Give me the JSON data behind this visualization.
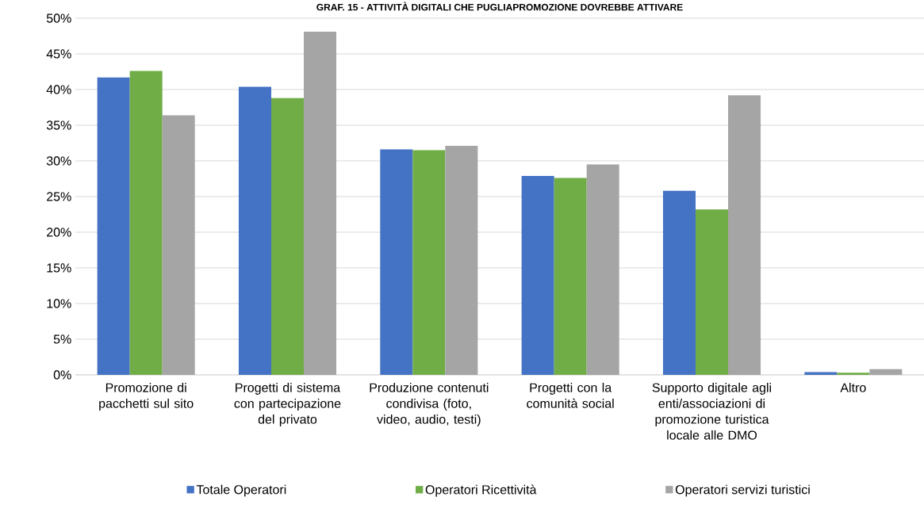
{
  "chart_data": {
    "type": "bar",
    "title": "GRAF. 15 - ATTIVITÀ DIGITALI CHE PUGLIAPROMOZIONE DOVREBBE ATTIVARE",
    "categories": [
      "Promozione di pacchetti sul sito",
      "Progetti di sistema con partecipazione del privato",
      "Produzione contenuti condivisa (foto, video, audio, testi)",
      "Progetti con la comunità social",
      "Supporto digitale agli enti/associazioni di promozione turistica locale alle DMO",
      "Altro"
    ],
    "series": [
      {
        "name": "Totale Operatori",
        "color": "#4472c4",
        "values": [
          41.7,
          40.4,
          31.6,
          27.9,
          25.8,
          0.4
        ]
      },
      {
        "name": "Operatori Ricettività",
        "color": "#70ad47",
        "values": [
          42.6,
          38.8,
          31.5,
          27.6,
          23.2,
          0.3
        ]
      },
      {
        "name": "Operatori servizi turistici",
        "color": "#a5a5a5",
        "values": [
          36.4,
          48.1,
          32.1,
          29.5,
          39.2,
          0.8
        ]
      }
    ],
    "ylim": [
      0,
      50
    ],
    "yticks": [
      {
        "value": 0,
        "label": "0%"
      },
      {
        "value": 5,
        "label": "5%"
      },
      {
        "value": 10,
        "label": "10%"
      },
      {
        "value": 15,
        "label": "15%"
      },
      {
        "value": 20,
        "label": "20%"
      },
      {
        "value": 25,
        "label": "25%"
      },
      {
        "value": 30,
        "label": "30%"
      },
      {
        "value": 35,
        "label": "35%"
      },
      {
        "value": 40,
        "label": "40%"
      },
      {
        "value": 45,
        "label": "45%"
      },
      {
        "value": 50,
        "label": "50%"
      }
    ],
    "grid": "y",
    "legend": "bottom"
  }
}
